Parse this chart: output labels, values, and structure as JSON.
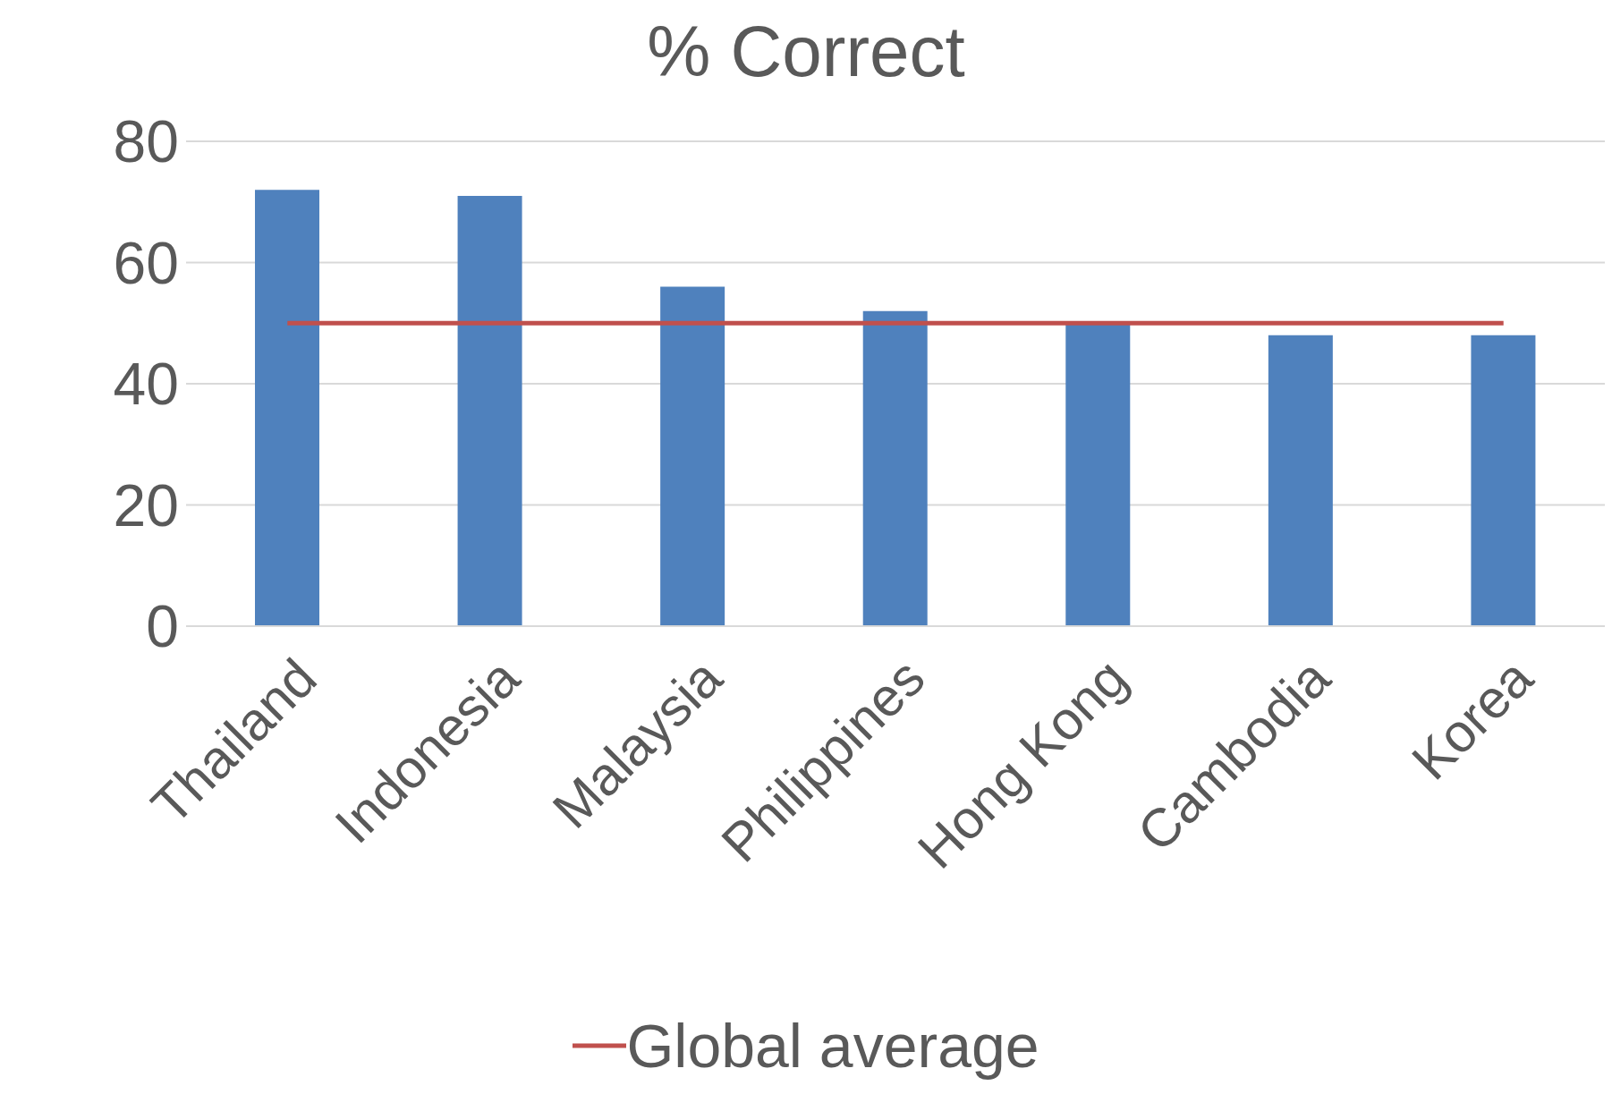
{
  "chart_data": {
    "type": "bar",
    "title": "% Correct",
    "categories": [
      "Thailand",
      "Indonesia",
      "Malaysia",
      "Philippines",
      "Hong Kong",
      "Cambodia",
      "Korea"
    ],
    "series": [
      {
        "color": "#4f81bd",
        "values": [
          72,
          71,
          56,
          52,
          50,
          48,
          48
        ]
      },
      {
        "type": "line",
        "name": "Global average",
        "color": "#c0504d",
        "values": [
          50,
          50,
          50,
          50,
          50,
          50,
          50
        ]
      }
    ],
    "ylim": [
      0,
      80
    ],
    "yticks": [
      0,
      20,
      40,
      60,
      80
    ],
    "grid": "y",
    "legend": "bottom"
  }
}
